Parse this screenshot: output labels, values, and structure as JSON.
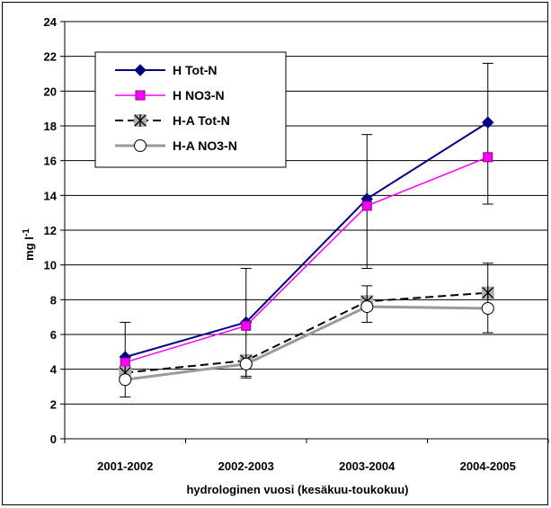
{
  "chart_data": {
    "type": "line",
    "categories": [
      "2001-2002",
      "2002-2003",
      "2003-2004",
      "2004-2005"
    ],
    "xlabel": "hydrologinen vuosi (kesäkuu-toukokuu)",
    "ylabel_main": "mg l",
    "ylabel_sup": "-1",
    "ylim": [
      0,
      24
    ],
    "yticks": [
      0,
      2,
      4,
      6,
      8,
      10,
      12,
      14,
      16,
      18,
      20,
      22,
      24
    ],
    "grid": true,
    "legend_position": "top-left",
    "series": [
      {
        "name": "H Tot-N",
        "values": [
          4.7,
          6.7,
          13.8,
          18.2
        ],
        "error_low": [
          3.7,
          3.6,
          9.8,
          13.5
        ],
        "error_high": [
          6.7,
          9.8,
          17.5,
          21.6
        ],
        "color": "#000080",
        "marker": "diamond",
        "marker_fill": "#000080",
        "dash": "none",
        "width": 2
      },
      {
        "name": "H NO3-N",
        "values": [
          4.4,
          6.5,
          13.4,
          16.2
        ],
        "color": "#FF00FF",
        "marker": "square",
        "marker_fill": "#FF00FF",
        "dash": "none",
        "width": 1.5
      },
      {
        "name": "H-A Tot-N",
        "values": [
          3.8,
          4.5,
          7.9,
          8.4
        ],
        "error_low": [
          2.4,
          3.5,
          6.7,
          6.1
        ],
        "error_high": [
          4.2,
          4.8,
          8.8,
          10.1
        ],
        "color": "#000000",
        "marker": "asterisk",
        "marker_fill": "#b0b0b0",
        "dash": "9,5",
        "width": 2
      },
      {
        "name": "H-A NO3-N",
        "values": [
          3.4,
          4.3,
          7.6,
          7.5
        ],
        "color": "#9a9a9a",
        "marker": "circle",
        "marker_fill": "#ffffff",
        "dash": "none",
        "width": 3
      }
    ]
  }
}
